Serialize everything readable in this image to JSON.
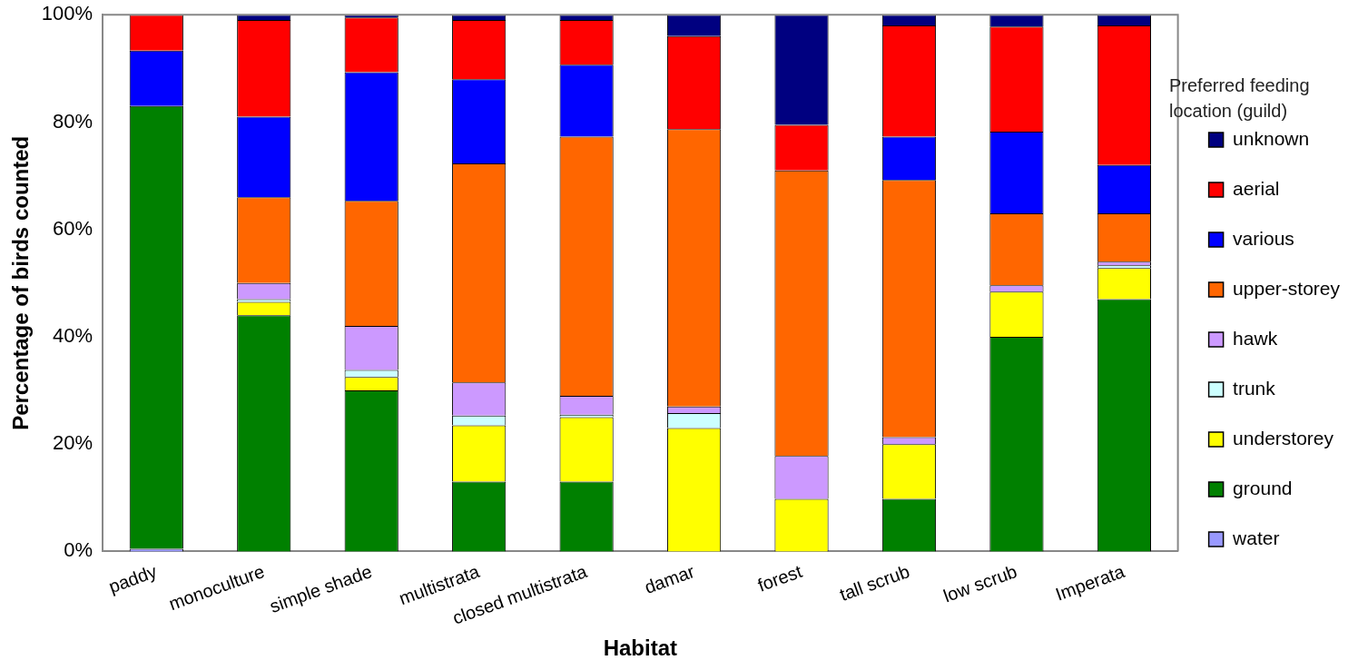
{
  "chart_data": {
    "type": "bar",
    "stacked": true,
    "xlabel": "Habitat",
    "ylabel": "Percentage of birds counted",
    "legend_title": "Preferred feeding location (guild)",
    "legend": "right",
    "grid": false,
    "categories": [
      "paddy",
      "monoculture",
      "simple shade",
      "multistrata",
      "closed multistrata",
      "damar",
      "forest",
      "tall scrub",
      "low scrub",
      "Imperata"
    ],
    "ylim": [
      0,
      100
    ],
    "yticks": [
      {
        "value": 0,
        "label": "0%"
      },
      {
        "value": 20,
        "label": "20%"
      },
      {
        "value": 40,
        "label": "40%"
      },
      {
        "value": 60,
        "label": "60%"
      },
      {
        "value": 80,
        "label": "80%"
      },
      {
        "value": 100,
        "label": "100%"
      }
    ],
    "series": [
      {
        "name": "water",
        "color": "#9999ff",
        "values": [
          0.5,
          0,
          0,
          0,
          0,
          0,
          0,
          0,
          0,
          0
        ]
      },
      {
        "name": "ground",
        "color": "#008000",
        "values": [
          82.5,
          44,
          30,
          13,
          13,
          0,
          0,
          9.8,
          40,
          47
        ]
      },
      {
        "name": "understorey",
        "color": "#ffff00",
        "values": [
          0,
          2.5,
          2.5,
          10.5,
          12,
          23,
          9.8,
          10.2,
          8.4,
          5.8
        ]
      },
      {
        "name": "trunk",
        "color": "#ccffff",
        "values": [
          0,
          0.5,
          1.3,
          1.8,
          0.5,
          2.8,
          0,
          0,
          0,
          0.5
        ]
      },
      {
        "name": "hawk",
        "color": "#cc99ff",
        "values": [
          0,
          3,
          8.2,
          6.2,
          3.5,
          1.2,
          8,
          1.3,
          1.2,
          0.7
        ]
      },
      {
        "name": "upper-storey",
        "color": "#ff6600",
        "values": [
          0,
          16,
          23.3,
          40.8,
          48.3,
          51.7,
          53.2,
          47.9,
          13.4,
          9
        ]
      },
      {
        "name": "various",
        "color": "#0000ff",
        "values": [
          10.3,
          15,
          24,
          15.7,
          13.4,
          0,
          0,
          8.1,
          15.2,
          9
        ]
      },
      {
        "name": "aerial",
        "color": "#ff0000",
        "values": [
          6.7,
          18,
          10.2,
          11,
          8.3,
          17.3,
          8.5,
          20.7,
          19.6,
          26
        ]
      },
      {
        "name": "unknown",
        "color": "#000080",
        "values": [
          0,
          1,
          0.5,
          1,
          1,
          4,
          20.5,
          2,
          2.2,
          2
        ]
      }
    ]
  }
}
